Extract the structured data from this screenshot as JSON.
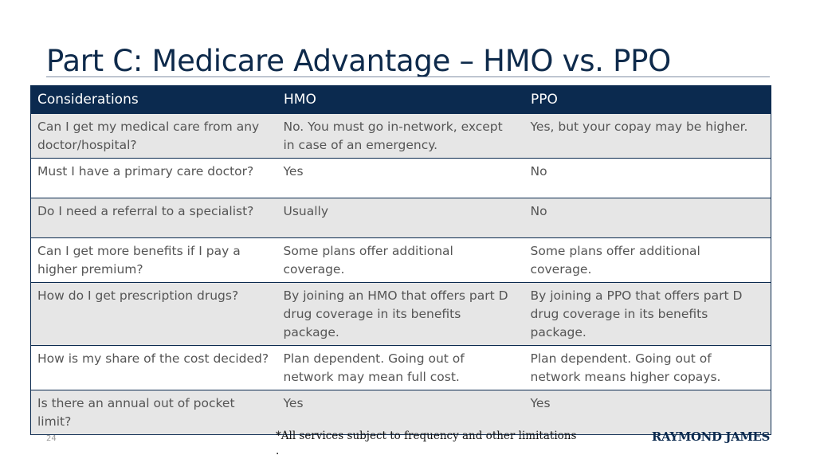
{
  "title": "Part C: Medicare Advantage – HMO vs. PPO",
  "table": {
    "headers": [
      "Considerations",
      "HMO",
      "PPO"
    ],
    "rows": [
      [
        "Can I get my medical care from any doctor/hospital?",
        "No. You must go in-network, except in case of an emergency.",
        "Yes, but your copay may be higher."
      ],
      [
        "Must I have a primary care doctor?",
        "Yes",
        "No"
      ],
      [
        "Do I need a referral to a specialist?",
        "Usually",
        "No"
      ],
      [
        "Can I get more benefits if I pay a higher premium?",
        "Some plans offer additional coverage.",
        "Some plans offer additional coverage."
      ],
      [
        "How do I get prescription drugs?",
        "By joining an HMO that offers part D drug coverage in its benefits package.",
        "By joining a PPO that offers part D drug coverage in its benefits package."
      ],
      [
        "How is my share of the cost decided?",
        "Plan dependent. Going out of network may mean full cost.",
        "Plan dependent. Going out of network means higher copays."
      ],
      [
        "Is there an annual out of pocket limit?",
        "Yes",
        "Yes"
      ]
    ]
  },
  "footer": {
    "page_number": "24",
    "footnote_line1": "*All services subject to frequency and other limitations",
    "footnote_line2": ".",
    "logo_text": "RAYMOND JAMES"
  },
  "colors": {
    "title": "#0e2a4b",
    "header_bg": "#0b2a4f",
    "row_shade": "#e6e6e6"
  }
}
